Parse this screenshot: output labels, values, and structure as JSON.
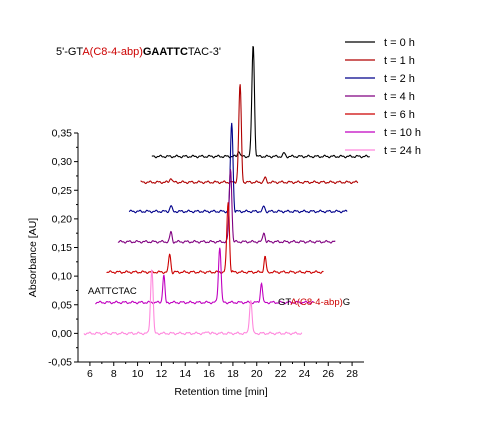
{
  "chart_data": {
    "type": "line",
    "title_parts": [
      {
        "text": "5'-GT",
        "style": "normal"
      },
      {
        "text": "A(C8-4-abp)",
        "style": "mod"
      },
      {
        "text": "GAATTC",
        "style": "bold"
      },
      {
        "text": "TAC-3'",
        "style": "normal"
      }
    ],
    "xlabel": "Retention time [min]",
    "ylabel": "Absorbance [AU]",
    "xlim": [
      5,
      29
    ],
    "ylim": [
      -0.05,
      0.35
    ],
    "x_ticks": [
      6,
      8,
      10,
      12,
      14,
      16,
      18,
      20,
      22,
      24,
      26,
      28
    ],
    "y_ticks": [
      -0.05,
      0.0,
      0.05,
      0.1,
      0.15,
      0.2,
      0.25,
      0.3,
      0.35
    ],
    "y_tick_labels": [
      "-0,05",
      "0,00",
      "0,05",
      "0,10",
      "0,15",
      "0,20",
      "0,25",
      "0,30",
      "0,35"
    ],
    "waterfall_x_offset_per_step": 0.95,
    "legend_position": "top-right",
    "series": [
      {
        "name": "t = 0 h",
        "color": "#000000",
        "baseline": 0.309,
        "x_start": 11.2,
        "x_end": 29.5,
        "peaks": [
          {
            "x": 18.5,
            "height": 0.01
          },
          {
            "x": 19.7,
            "height": 0.195
          },
          {
            "x": 22.3,
            "height": 0.006
          }
        ]
      },
      {
        "name": "t = 1 h",
        "color": "#b00000",
        "baseline": 0.264,
        "x_start": 10.25,
        "x_end": 28.5,
        "peaks": [
          {
            "x": 12.8,
            "height": 0.008
          },
          {
            "x": 18.6,
            "height": 0.17
          },
          {
            "x": 20.7,
            "height": 0.008
          }
        ]
      },
      {
        "name": "t = 2 h",
        "color": "#00008b",
        "baseline": 0.213,
        "x_start": 9.3,
        "x_end": 27.6,
        "peaks": [
          {
            "x": 12.8,
            "height": 0.01
          },
          {
            "x": 17.9,
            "height": 0.155
          },
          {
            "x": 20.6,
            "height": 0.009
          }
        ]
      },
      {
        "name": "t = 4 h",
        "color": "#800080",
        "baseline": 0.16,
        "x_start": 8.35,
        "x_end": 26.6,
        "peaks": [
          {
            "x": 12.8,
            "height": 0.017
          },
          {
            "x": 17.8,
            "height": 0.128
          },
          {
            "x": 20.6,
            "height": 0.017
          }
        ]
      },
      {
        "name": "t = 6 h",
        "color": "#cc0000",
        "baseline": 0.107,
        "x_start": 7.4,
        "x_end": 25.6,
        "peaks": [
          {
            "x": 12.7,
            "height": 0.032
          },
          {
            "x": 17.6,
            "height": 0.123
          },
          {
            "x": 20.7,
            "height": 0.027
          }
        ]
      },
      {
        "name": "t = 10 h",
        "color": "#c000c0",
        "baseline": 0.054,
        "x_start": 6.45,
        "x_end": 24.8,
        "peaks": [
          {
            "x": 12.2,
            "height": 0.048
          },
          {
            "x": 16.9,
            "height": 0.097
          },
          {
            "x": 20.4,
            "height": 0.034
          }
        ]
      },
      {
        "name": "t = 24 h",
        "color": "#ff88dd",
        "baseline": 0.0,
        "x_start": 5.5,
        "x_end": 23.8,
        "peaks": [
          {
            "x": 11.2,
            "height": 0.113
          },
          {
            "x": 15.9,
            "height": 0.004
          },
          {
            "x": 19.5,
            "height": 0.058
          }
        ]
      }
    ],
    "annotations": [
      {
        "text": "AATTCTAC",
        "style": "normal"
      },
      {
        "text_parts": [
          {
            "text": "GT",
            "style": "normal"
          },
          {
            "text": "A(C8-4-abp)",
            "style": "mod"
          },
          {
            "text": "G",
            "style": "normal"
          }
        ]
      }
    ]
  }
}
